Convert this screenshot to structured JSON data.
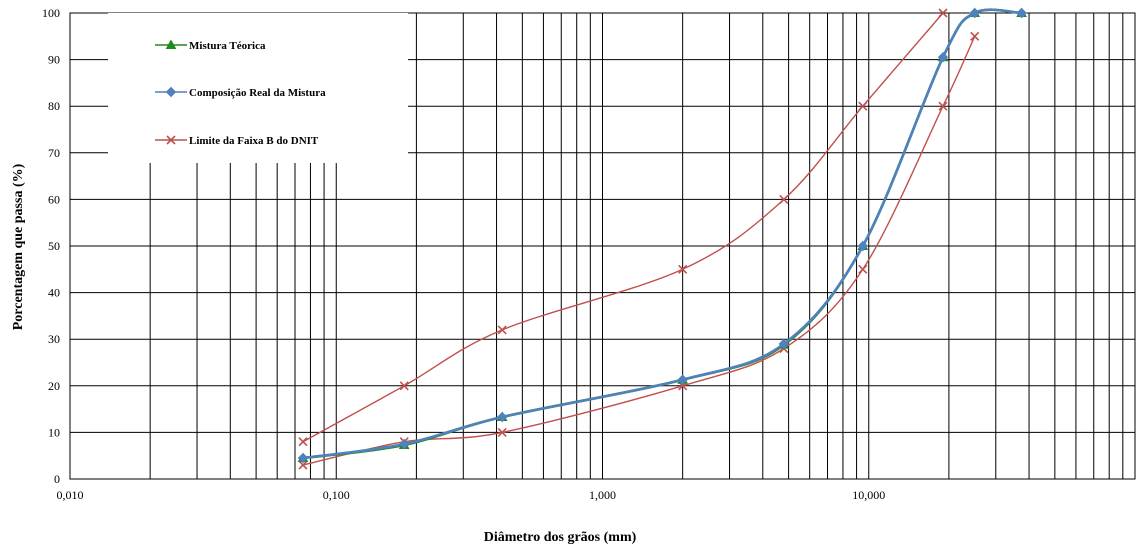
{
  "chart_data": {
    "type": "line",
    "xscale": "log",
    "xlim": [
      0.01,
      100
    ],
    "ylim": [
      0,
      100
    ],
    "xticks": [
      0.01,
      0.1,
      1,
      10
    ],
    "xtick_labels": [
      "0,010",
      "0,100",
      "1,000",
      "10,000"
    ],
    "yticks": [
      0,
      10,
      20,
      30,
      40,
      50,
      60,
      70,
      80,
      90,
      100
    ],
    "ytick_labels": [
      "0",
      "10",
      "20",
      "30",
      "40",
      "50",
      "60",
      "70",
      "80",
      "90",
      "100"
    ],
    "xlabel": "Diâmetro dos grãos (mm)",
    "ylabel": "Porcentagem que passa (%)",
    "grid": true,
    "legend_position": "top-left",
    "series": [
      {
        "name": "Mistura Téorica",
        "color": "#1f8a1f",
        "marker": "triangle",
        "points": [
          [
            0.075,
            4.5
          ],
          [
            0.18,
            7.3
          ],
          [
            0.42,
            13.3
          ],
          [
            2.0,
            21.3
          ],
          [
            4.8,
            28.8
          ],
          [
            9.5,
            50.0
          ],
          [
            19.0,
            90.5
          ],
          [
            25.0,
            100.0
          ],
          [
            37.5,
            100.0
          ]
        ]
      },
      {
        "name": "Composição Real da Mistura",
        "color": "#4f81bd",
        "marker": "diamond",
        "points": [
          [
            0.075,
            4.5
          ],
          [
            0.18,
            7.5
          ],
          [
            0.42,
            13.3
          ],
          [
            2.0,
            21.3
          ],
          [
            4.8,
            29.0
          ],
          [
            9.5,
            50.0
          ],
          [
            19.0,
            90.5
          ],
          [
            25.0,
            100.0
          ],
          [
            37.5,
            100.0
          ]
        ]
      },
      {
        "name": "Limite da Faixa B do DNIT",
        "color": "#c0504d",
        "marker": "x",
        "points": [
          [
            0.075,
            8
          ],
          [
            0.18,
            20
          ],
          [
            0.42,
            32
          ],
          [
            2.0,
            45
          ],
          [
            4.8,
            60
          ],
          [
            9.5,
            80
          ],
          [
            19.0,
            100
          ]
        ]
      },
      {
        "name": "",
        "color": "#c0504d",
        "marker": "x",
        "points": [
          [
            0.075,
            3
          ],
          [
            0.18,
            8
          ],
          [
            0.42,
            10
          ],
          [
            2.0,
            20
          ],
          [
            4.8,
            28
          ],
          [
            9.5,
            45
          ],
          [
            19.0,
            80
          ],
          [
            25.0,
            95
          ]
        ]
      }
    ]
  }
}
